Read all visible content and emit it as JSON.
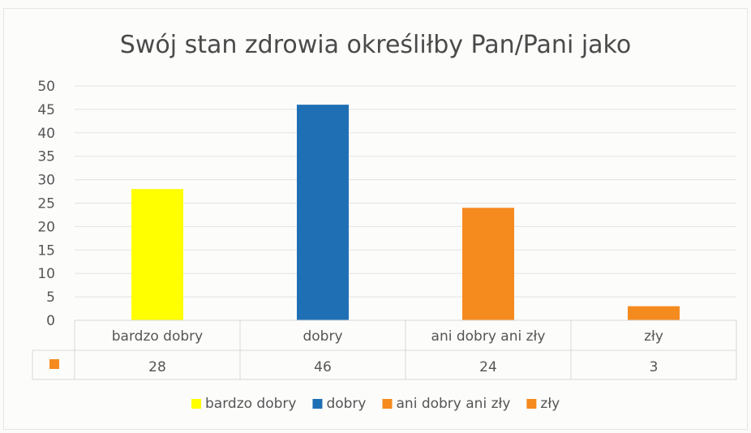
{
  "chart_data": {
    "type": "bar",
    "title": "Swój stan zdrowia określiłby Pan/Pani jako",
    "categories": [
      "bardzo dobry",
      "dobry",
      "ani dobry ani zły",
      "zły"
    ],
    "values": [
      28,
      46,
      24,
      3
    ],
    "value_labels": [
      "28",
      "46",
      "24",
      "3"
    ],
    "colors": [
      "#ffff00",
      "#1f6fb4",
      "#f58a1f",
      "#f58a1f"
    ],
    "data_table_marker_color": "#f58a1f",
    "ylim": [
      0,
      50
    ],
    "yticks": [
      0,
      5,
      10,
      15,
      20,
      25,
      30,
      35,
      40,
      45,
      50
    ],
    "grid": true,
    "legend_position": "bottom",
    "legend": [
      {
        "label": "bardzo dobry",
        "color": "#ffff00"
      },
      {
        "label": "dobry",
        "color": "#1f6fb4"
      },
      {
        "label": "ani dobry ani zły",
        "color": "#f58a1f"
      },
      {
        "label": "zły",
        "color": "#f58a1f"
      }
    ]
  }
}
